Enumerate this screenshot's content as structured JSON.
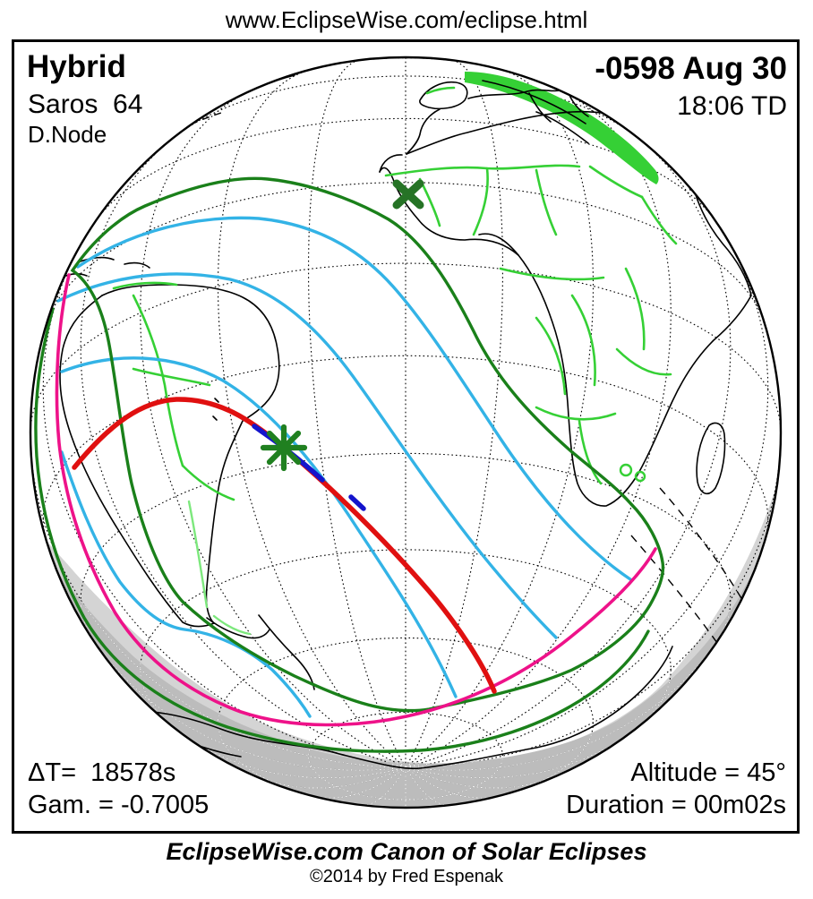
{
  "page": {
    "url_banner": "www.EclipseWise.com/eclipse.html"
  },
  "header": {
    "eclipse_type": "Hybrid",
    "saros": "Saros  64",
    "node": "D.Node",
    "date": "-0598 Aug 30",
    "time": "18:06 TD"
  },
  "stats": {
    "delta_t": "ΔT=  18578s",
    "gamma": "Gam. = -0.7005",
    "altitude": "Altitude = 45°",
    "duration": "Duration = 00m02s"
  },
  "caption": {
    "title": "EclipseWise.com Canon of Solar Eclipses",
    "copyright": "©2014 by Fred Espenak"
  },
  "map": {
    "projection": "orthographic-globe",
    "markers": [
      {
        "name": "greatest-eclipse",
        "symbol": "asterisk",
        "color": "#208020"
      },
      {
        "name": "sub-solar-point",
        "symbol": "x",
        "color": "#267326"
      }
    ],
    "colors": {
      "central_path_total": "#1414cc",
      "central_path_annular": "#e01010",
      "penumbral_limit": "#1a801a",
      "eclipse_contour": "#33b3e6",
      "sunrise_sunset_curve": "#ee1289",
      "country_border": "#35d035",
      "country_border_light": "#7de87d",
      "coastline": "#000000",
      "graticule": "#000000",
      "graticule_night": "#ffffff",
      "twilight_shading": "#d4d4d4",
      "night_shading": "#bcbcbc"
    }
  }
}
